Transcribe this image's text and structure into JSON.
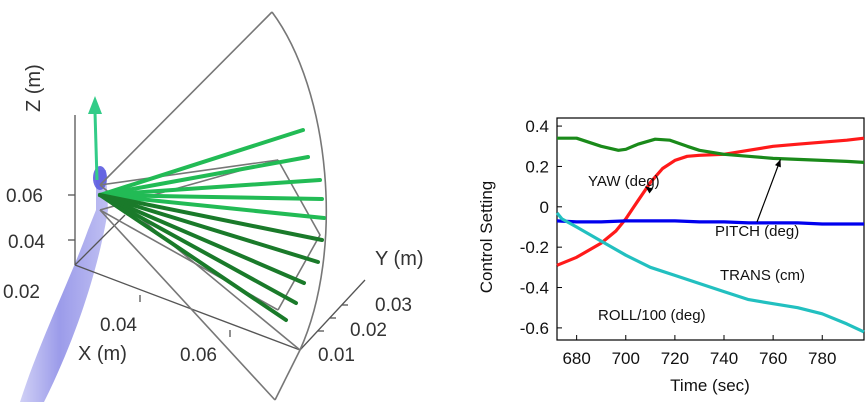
{
  "colors": {
    "probe": "#8080e0",
    "arrow": "#33cc88",
    "rays_light": "#22bb55",
    "rays_dark": "#1a7a2a",
    "frame": "#555555",
    "yaw": "#ff1a1a",
    "pitch": "#1a8a1a",
    "trans": "#0000ee",
    "roll": "#22c0c0"
  },
  "left_plot": {
    "z_axis_label": "Z (m)",
    "y_axis_label": "Y (m)",
    "x_axis_label": "X (m)",
    "z_ticks": [
      "0.06",
      "0.04",
      "0.02"
    ],
    "x_ticks": [
      "0.04",
      "0.06"
    ],
    "y_ticks": [
      "0.03",
      "0.02",
      "0.01"
    ]
  },
  "chart_data": {
    "type": "line",
    "title": "",
    "xlabel": "Time (sec)",
    "ylabel": "Control Setting",
    "xlim": [
      672,
      797
    ],
    "ylim": [
      -0.66,
      0.44
    ],
    "x_ticks": [
      "680",
      "700",
      "720",
      "740",
      "760",
      "780"
    ],
    "y_ticks": [
      "0.4",
      "0.2",
      "0",
      "-0.2",
      "-0.4",
      "-0.6"
    ],
    "grid": false,
    "series": [
      {
        "name": "YAW (deg)",
        "color": "#ff1a1a",
        "x": [
          672,
          680,
          690,
          696,
          700,
          705,
          710,
          715,
          720,
          725,
          730,
          740,
          750,
          760,
          770,
          780,
          790,
          797
        ],
        "y": [
          -0.29,
          -0.25,
          -0.18,
          -0.12,
          -0.06,
          0.03,
          0.12,
          0.19,
          0.23,
          0.25,
          0.255,
          0.26,
          0.28,
          0.3,
          0.31,
          0.32,
          0.33,
          0.34
        ]
      },
      {
        "name": "PITCH (deg)",
        "color": "#1a8a1a",
        "x": [
          672,
          680,
          690,
          697,
          700,
          705,
          712,
          718,
          725,
          730,
          740,
          750,
          760,
          770,
          780,
          790,
          797
        ],
        "y": [
          0.34,
          0.34,
          0.3,
          0.28,
          0.285,
          0.31,
          0.335,
          0.33,
          0.3,
          0.28,
          0.26,
          0.25,
          0.24,
          0.235,
          0.23,
          0.225,
          0.22
        ]
      },
      {
        "name": "TRANS (cm)",
        "color": "#0000ee",
        "x": [
          672,
          680,
          690,
          700,
          710,
          720,
          730,
          740,
          750,
          760,
          770,
          780,
          790,
          797
        ],
        "y": [
          -0.07,
          -0.075,
          -0.075,
          -0.07,
          -0.07,
          -0.07,
          -0.075,
          -0.075,
          -0.08,
          -0.08,
          -0.08,
          -0.085,
          -0.085,
          -0.085
        ]
      },
      {
        "name": "ROLL/100 (deg)",
        "color": "#22c0c0",
        "x": [
          672,
          674,
          680,
          690,
          700,
          710,
          720,
          730,
          740,
          750,
          760,
          770,
          780,
          790,
          797
        ],
        "y": [
          -0.03,
          -0.06,
          -0.1,
          -0.17,
          -0.24,
          -0.3,
          -0.34,
          -0.38,
          -0.42,
          -0.46,
          -0.48,
          -0.5,
          -0.53,
          -0.58,
          -0.62
        ]
      }
    ],
    "annotations": [
      {
        "text": "YAW (deg)",
        "series": "YAW (deg)",
        "arrow_to": [
          708,
          0.1
        ]
      },
      {
        "text": "PITCH (deg)",
        "series": "PITCH (deg)",
        "arrow_to": [
          763,
          0.235
        ]
      },
      {
        "text": "TRANS (cm)",
        "series": "TRANS (cm)",
        "arrow_to": null
      },
      {
        "text": "ROLL/100 (deg)",
        "series": "ROLL/100 (deg)",
        "arrow_to": null
      }
    ]
  }
}
